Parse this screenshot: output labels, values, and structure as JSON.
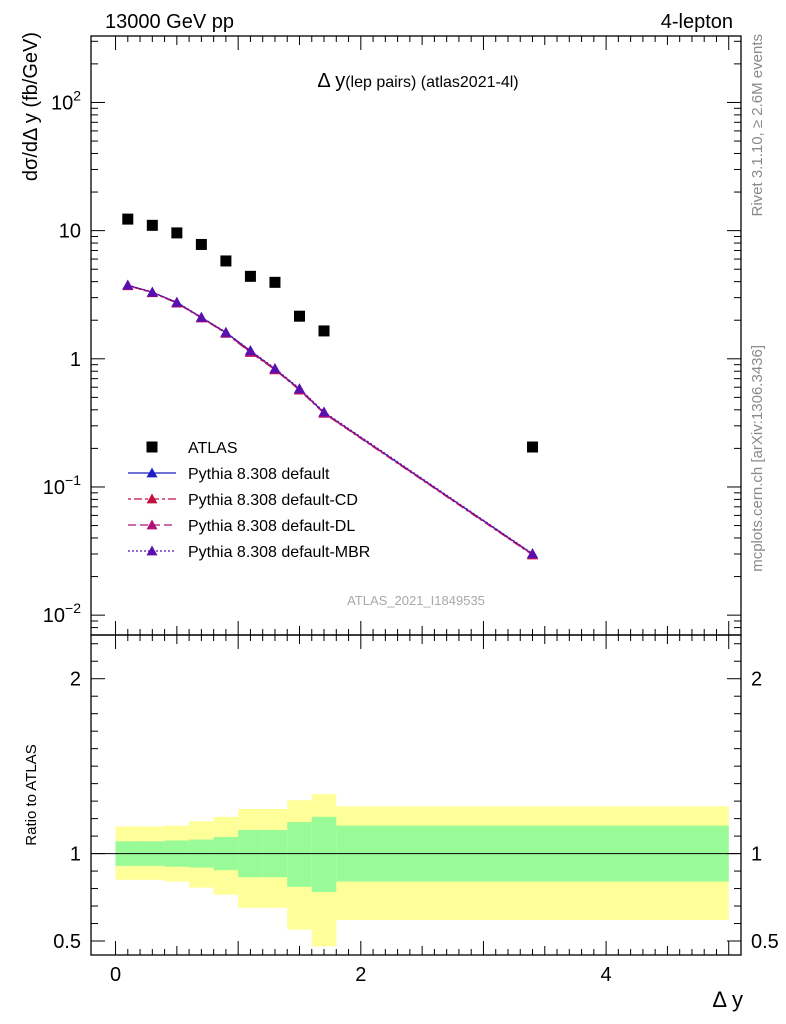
{
  "header": {
    "left": "13000 GeV pp",
    "right": "4-lepton"
  },
  "side_labels": {
    "top": "Rivet 3.1.10, ≥ 2.6M events",
    "bottom": "mcplots.cern.ch [arXiv:1306.3436]"
  },
  "chart_data": [
    {
      "type": "scatter",
      "title_main": "Δ y",
      "title_sub": "(lep pairs) (atlas2021-4l)",
      "watermark": "ATLAS_2021_I1849535",
      "ylabel": "dσ/dΔ y (fb/GeV)",
      "yscale": "log",
      "ylim": [
        0.007,
        330
      ],
      "xlim": [
        -0.2,
        5.1
      ],
      "y_ticks": [
        {
          "value": 100,
          "base": "10",
          "exp": "2"
        },
        {
          "value": 10,
          "base": "10",
          "exp": ""
        },
        {
          "value": 1,
          "base": "1",
          "exp": ""
        },
        {
          "value": 0.1,
          "base": "10",
          "exp": "−1"
        },
        {
          "value": 0.01,
          "base": "10",
          "exp": "−2"
        }
      ],
      "data": {
        "name": "ATLAS",
        "x": [
          0.1,
          0.3,
          0.5,
          0.7,
          0.9,
          1.1,
          1.3,
          1.5,
          1.7,
          3.4
        ],
        "y": [
          12.3,
          11.0,
          9.6,
          7.8,
          5.8,
          4.4,
          3.95,
          2.15,
          1.65,
          0.205
        ]
      },
      "series": [
        {
          "name": "Pythia 8.308 default",
          "color": "#1f1fc8",
          "dash": "",
          "x": [
            0.1,
            0.3,
            0.5,
            0.7,
            0.9,
            1.1,
            1.3,
            1.5,
            1.7,
            3.4
          ],
          "y": [
            3.75,
            3.3,
            2.75,
            2.1,
            1.6,
            1.15,
            0.83,
            0.58,
            0.38,
            0.03
          ]
        },
        {
          "name": "Pythia 8.308 default-CD",
          "color": "#c01040",
          "dash": "3,3,8,3",
          "x": [
            0.1,
            0.3,
            0.5,
            0.7,
            0.9,
            1.1,
            1.3,
            1.5,
            1.7,
            3.4
          ],
          "y": [
            3.72,
            3.28,
            2.72,
            2.08,
            1.58,
            1.12,
            0.82,
            0.57,
            0.375,
            0.0295
          ]
        },
        {
          "name": "Pythia 8.308 default-DL",
          "color": "#b01078",
          "dash": "8,4",
          "x": [
            0.1,
            0.3,
            0.5,
            0.7,
            0.9,
            1.1,
            1.3,
            1.5,
            1.7,
            3.4
          ],
          "y": [
            3.74,
            3.3,
            2.74,
            2.09,
            1.59,
            1.13,
            0.83,
            0.575,
            0.378,
            0.0298
          ]
        },
        {
          "name": "Pythia 8.308 default-MBR",
          "color": "#5a10b0",
          "dash": "2,2",
          "x": [
            0.1,
            0.3,
            0.5,
            0.7,
            0.9,
            1.1,
            1.3,
            1.5,
            1.7,
            3.4
          ],
          "y": [
            3.76,
            3.31,
            2.76,
            2.11,
            1.61,
            1.16,
            0.84,
            0.585,
            0.385,
            0.0302
          ]
        }
      ],
      "legend_placement": "lower-left"
    },
    {
      "type": "area",
      "ylabel": "Ratio to ATLAS",
      "xlabel": "Δ y",
      "ylim": [
        0.42,
        2.25
      ],
      "x_ticks": [
        0,
        2,
        4
      ],
      "y_ticks": [
        0.5,
        1,
        2
      ],
      "bin_edges": [
        0,
        0.2,
        0.4,
        0.6,
        0.8,
        1.0,
        1.2,
        1.4,
        1.6,
        1.8,
        5.0
      ],
      "stat_band": {
        "color": "#98fb98",
        "lo": [
          0.93,
          0.93,
          0.925,
          0.92,
          0.905,
          0.865,
          0.865,
          0.81,
          0.78,
          0.84
        ],
        "hi": [
          1.07,
          1.07,
          1.075,
          1.08,
          1.095,
          1.135,
          1.135,
          1.18,
          1.21,
          1.16
        ]
      },
      "total_band": {
        "color": "#ffff99",
        "lo": [
          0.85,
          0.85,
          0.84,
          0.805,
          0.765,
          0.69,
          0.69,
          0.565,
          0.47,
          0.62
        ],
        "hi": [
          1.155,
          1.155,
          1.16,
          1.185,
          1.21,
          1.255,
          1.255,
          1.305,
          1.34,
          1.27
        ]
      },
      "reference": 1
    }
  ]
}
